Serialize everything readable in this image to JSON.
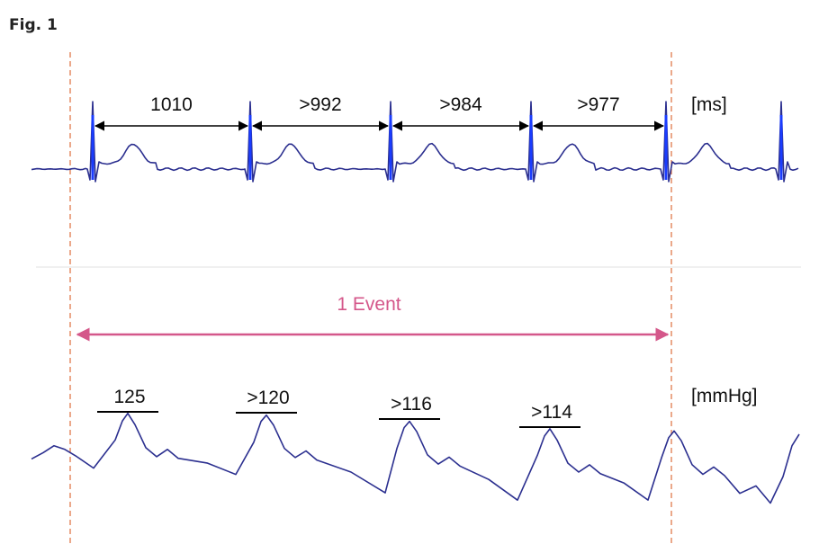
{
  "figure_label": "Fig. 1",
  "ecg": {
    "unit": "[ms]",
    "intervals": [
      {
        "label": "1010",
        "value": 1010
      },
      {
        "label": ">992",
        "value": 992
      },
      {
        "label": ">984",
        "value": 984
      },
      {
        "label": ">977",
        "value": 977
      }
    ]
  },
  "event": {
    "label": "1 Event"
  },
  "pressure": {
    "unit": "[mmHg]",
    "peaks": [
      {
        "label": "125",
        "value": 125
      },
      {
        "label": ">120",
        "value": 120
      },
      {
        "label": ">116",
        "value": 116
      },
      {
        "label": ">114",
        "value": 114
      }
    ]
  },
  "colors": {
    "trace": "#2b2f8f",
    "r_peak": "#1a3cff",
    "event_arrow": "#d4578a",
    "marker_line": "#e07a4a",
    "interval_arrow": "#000000",
    "divider": "#ececec"
  }
}
